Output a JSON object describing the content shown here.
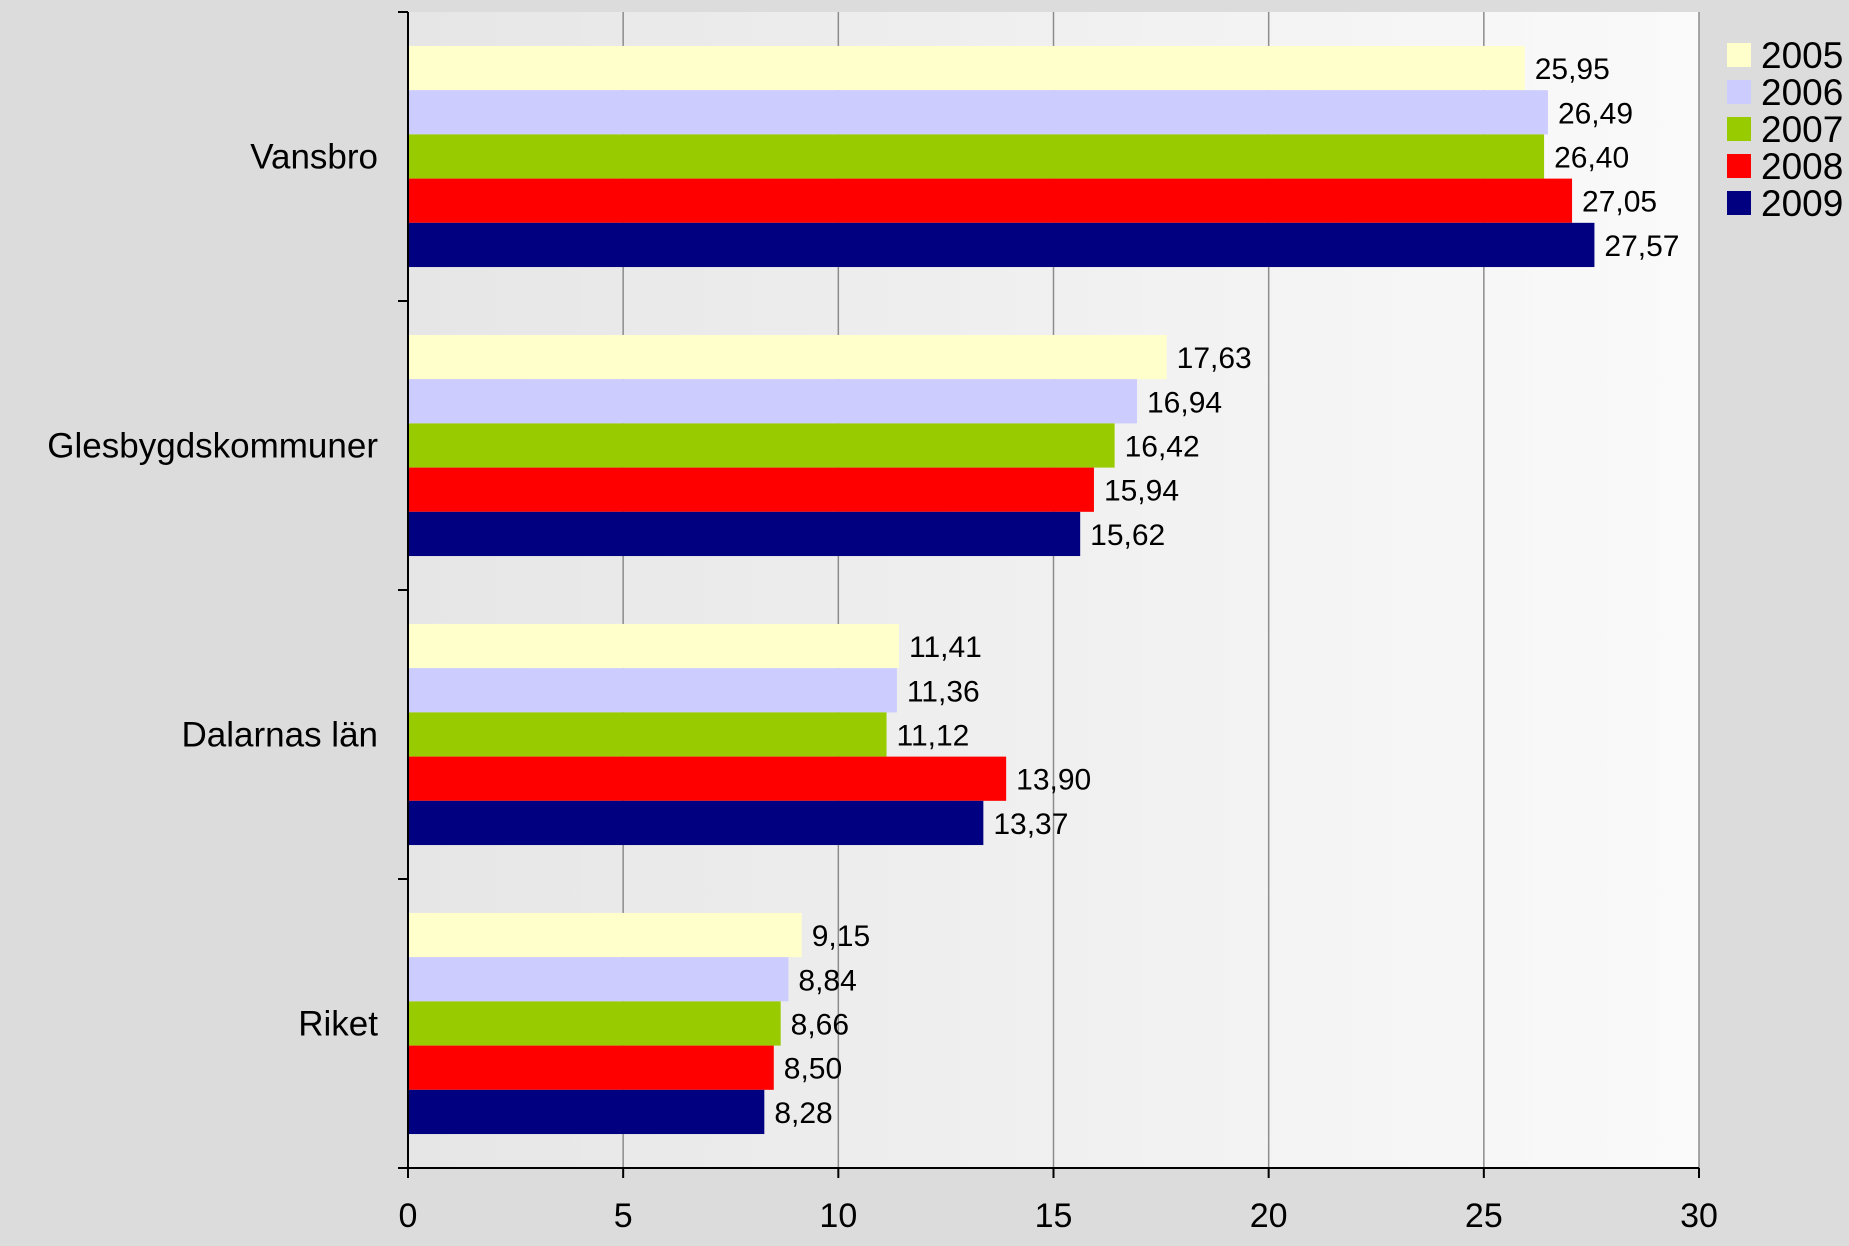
{
  "chart_data": {
    "type": "bar",
    "orientation": "horizontal",
    "title": "",
    "xlabel": "",
    "ylabel": "",
    "categories": [
      "Vansbro",
      "Glesbygdskommuner",
      "Dalarnas län",
      "Riket"
    ],
    "xlim": [
      0,
      30
    ],
    "x_ticks": [
      0,
      5,
      10,
      15,
      20,
      25,
      30
    ],
    "grid": "vertical",
    "legend_position": "top-right",
    "series": [
      {
        "name": "2005",
        "color": "#ffffcc",
        "values": [
          25.95,
          17.63,
          11.41,
          9.15
        ],
        "labels": [
          "25,95",
          "17,63",
          "11,41",
          "9,15"
        ]
      },
      {
        "name": "2006",
        "color": "#ccccff",
        "values": [
          26.49,
          16.94,
          11.36,
          8.84
        ],
        "labels": [
          "26,49",
          "16,94",
          "11,36",
          "8,84"
        ]
      },
      {
        "name": "2007",
        "color": "#99cc00",
        "values": [
          26.4,
          16.42,
          11.12,
          8.66
        ],
        "labels": [
          "26,40",
          "16,42",
          "11,12",
          "8,66"
        ]
      },
      {
        "name": "2008",
        "color": "#ff0000",
        "values": [
          27.05,
          15.94,
          13.9,
          8.5
        ],
        "labels": [
          "27,05",
          "15,94",
          "13,90",
          "8,50"
        ]
      },
      {
        "name": "2009",
        "color": "#000080",
        "values": [
          27.57,
          15.62,
          13.37,
          8.28
        ],
        "labels": [
          "27,57",
          "15,62",
          "13,37",
          "8,28"
        ]
      }
    ]
  }
}
